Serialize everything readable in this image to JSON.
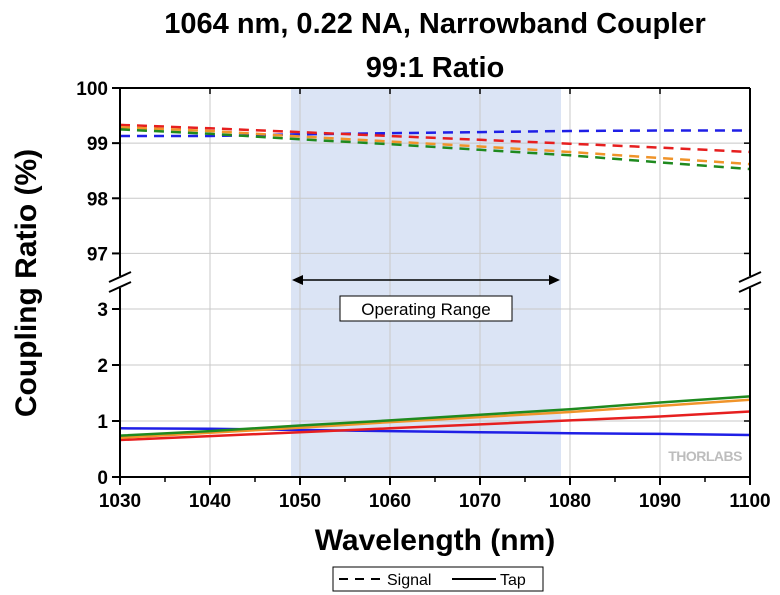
{
  "chart_data": {
    "type": "line",
    "title": [
      "1064 nm, 0.22 NA, Narrowband Coupler",
      "99:1 Ratio"
    ],
    "xlabel": "Wavelength (nm)",
    "ylabel": "Coupling Ratio (%)",
    "xlim": [
      1030,
      1100
    ],
    "x_ticks": [
      "1030",
      "1040",
      "1050",
      "1060",
      "1070",
      "1080",
      "1090",
      "1100"
    ],
    "y_upper": {
      "range": [
        96.5,
        100
      ],
      "ticks": [
        "97",
        "98",
        "99",
        "100"
      ]
    },
    "y_lower": {
      "range": [
        0,
        3.5
      ],
      "ticks": [
        "0",
        "1",
        "2",
        "3"
      ]
    },
    "axis_break": true,
    "grid": true,
    "operating_range": {
      "label": "Operating Range",
      "x": [
        1049,
        1079
      ],
      "color": "#dbe4f5"
    },
    "legend": {
      "placement": "bottom-center",
      "signal_label": "Signal",
      "tap_label": "Tap"
    },
    "watermark": "THORLABS",
    "series": [
      {
        "role": "signal",
        "color": "#1f1fe6",
        "x": [
          1030,
          1040,
          1050,
          1060,
          1070,
          1080,
          1090,
          1100
        ],
        "y": [
          99.13,
          99.13,
          99.16,
          99.18,
          99.2,
          99.22,
          99.23,
          99.23
        ]
      },
      {
        "role": "signal",
        "color": "#e61f1f",
        "x": [
          1030,
          1040,
          1050,
          1060,
          1070,
          1080,
          1090,
          1100
        ],
        "y": [
          99.33,
          99.27,
          99.2,
          99.13,
          99.06,
          98.99,
          98.92,
          98.84
        ]
      },
      {
        "role": "signal",
        "color": "#f0942a",
        "x": [
          1030,
          1040,
          1050,
          1060,
          1070,
          1080,
          1090,
          1100
        ],
        "y": [
          99.29,
          99.22,
          99.12,
          99.03,
          98.94,
          98.84,
          98.73,
          98.62
        ]
      },
      {
        "role": "signal",
        "color": "#1f8a1f",
        "x": [
          1030,
          1040,
          1050,
          1060,
          1070,
          1080,
          1090,
          1100
        ],
        "y": [
          99.25,
          99.17,
          99.07,
          98.98,
          98.88,
          98.78,
          98.65,
          98.53
        ]
      },
      {
        "role": "tap",
        "color": "#1f1fe6",
        "x": [
          1030,
          1040,
          1050,
          1060,
          1070,
          1080,
          1090,
          1100
        ],
        "y": [
          0.87,
          0.86,
          0.84,
          0.82,
          0.8,
          0.78,
          0.77,
          0.75
        ]
      },
      {
        "role": "tap",
        "color": "#e61f1f",
        "x": [
          1030,
          1040,
          1050,
          1060,
          1070,
          1080,
          1090,
          1100
        ],
        "y": [
          0.66,
          0.73,
          0.8,
          0.87,
          0.94,
          1.01,
          1.08,
          1.17
        ]
      },
      {
        "role": "tap",
        "color": "#f0942a",
        "x": [
          1030,
          1040,
          1050,
          1060,
          1070,
          1080,
          1090,
          1100
        ],
        "y": [
          0.7,
          0.79,
          0.88,
          0.98,
          1.07,
          1.16,
          1.27,
          1.38
        ]
      },
      {
        "role": "tap",
        "color": "#1f8a1f",
        "x": [
          1030,
          1040,
          1050,
          1060,
          1070,
          1080,
          1090,
          1100
        ],
        "y": [
          0.74,
          0.82,
          0.92,
          1.01,
          1.11,
          1.21,
          1.33,
          1.44
        ]
      }
    ]
  }
}
